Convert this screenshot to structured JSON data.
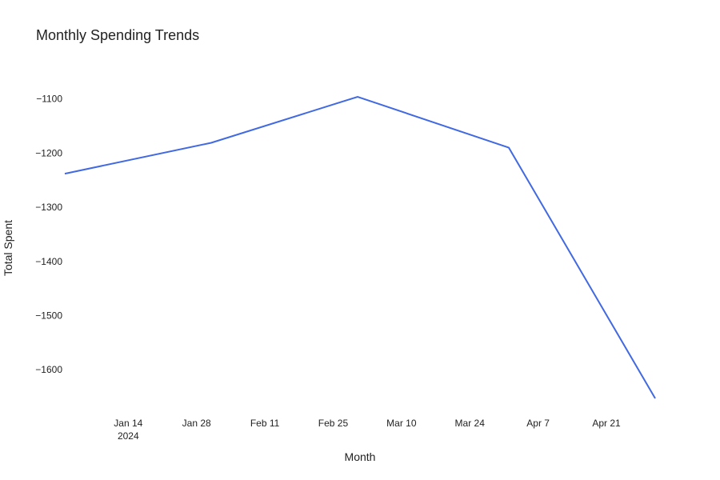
{
  "chart_data": {
    "type": "line",
    "title": "Monthly Spending Trends",
    "xlabel": "Month",
    "ylabel": "Total Spent",
    "grid": false,
    "line_color": "#4169e1",
    "x": [
      "2024-01-01",
      "2024-01-31",
      "2024-03-01",
      "2024-04-01",
      "2024-05-01"
    ],
    "y": [
      -1238,
      -1181,
      -1096,
      -1190,
      -1653
    ],
    "xlim": [
      "2024-01-01",
      "2024-05-01"
    ],
    "ylim": [
      -1653,
      -1096
    ],
    "x_ticks": [
      {
        "date": "2024-01-14",
        "label": "Jan 14",
        "sublabel": "2024"
      },
      {
        "date": "2024-01-28",
        "label": "Jan 28"
      },
      {
        "date": "2024-02-11",
        "label": "Feb 11"
      },
      {
        "date": "2024-02-25",
        "label": "Feb 25"
      },
      {
        "date": "2024-03-10",
        "label": "Mar 10"
      },
      {
        "date": "2024-03-24",
        "label": "Mar 24"
      },
      {
        "date": "2024-04-07",
        "label": "Apr 7"
      },
      {
        "date": "2024-04-21",
        "label": "Apr 21"
      }
    ],
    "y_ticks": [
      {
        "value": -1100,
        "label": "−1100"
      },
      {
        "value": -1200,
        "label": "−1200"
      },
      {
        "value": -1300,
        "label": "−1300"
      },
      {
        "value": -1400,
        "label": "−1400"
      },
      {
        "value": -1500,
        "label": "−1500"
      },
      {
        "value": -1600,
        "label": "−1600"
      }
    ]
  }
}
